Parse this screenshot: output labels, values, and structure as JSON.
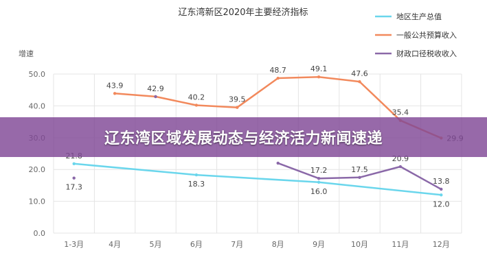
{
  "banner": {
    "headline": "辽东湾区域发展动态与经济活力新闻速递"
  },
  "colors": {
    "series1": "#6ad6ec",
    "series2": "#f2895c",
    "series3": "#8a68a8",
    "grid": "#e4e4e4",
    "axis_text": "#666666",
    "label_text": "#444444",
    "banner_bg": "#804896"
  },
  "chart_data": {
    "type": "line",
    "title": "辽东湾新区2020年主要经济指标",
    "xlabel": "",
    "ylabel": "增速",
    "ylim": [
      0,
      50
    ],
    "yticks": [
      "0.0",
      "10.0",
      "20.0",
      "30.0",
      "40.0",
      "50.0"
    ],
    "grid": true,
    "legend_position": "top-right",
    "categories": [
      "1-3月",
      "4月",
      "5月",
      "6月",
      "7月",
      "8月",
      "9月",
      "10月",
      "11月",
      "12月"
    ],
    "series": [
      {
        "name": "地区生产总值",
        "values": [
          21.8,
          null,
          null,
          18.3,
          null,
          null,
          16.0,
          null,
          null,
          12.0
        ],
        "connect_gaps": true
      },
      {
        "name": "一般公共预算收入",
        "values": [
          null,
          43.9,
          42.9,
          40.2,
          39.5,
          48.7,
          49.1,
          47.6,
          35.4,
          29.9
        ],
        "connect_gaps": false
      },
      {
        "name": "财政口径税收收入",
        "values": [
          17.3,
          null,
          42.9,
          null,
          null,
          22.0,
          17.2,
          17.5,
          20.9,
          13.8
        ],
        "connect_gaps": false
      }
    ],
    "data_labels": [
      {
        "series": 0,
        "index": 0,
        "text": "21.8",
        "pos": "above"
      },
      {
        "series": 0,
        "index": 3,
        "text": "18.3",
        "pos": "below"
      },
      {
        "series": 0,
        "index": 6,
        "text": "16.0",
        "pos": "below"
      },
      {
        "series": 0,
        "index": 9,
        "text": "12.0",
        "pos": "below"
      },
      {
        "series": 1,
        "index": 1,
        "text": "43.9",
        "pos": "above"
      },
      {
        "series": 1,
        "index": 2,
        "text": "42.9",
        "pos": "above"
      },
      {
        "series": 1,
        "index": 3,
        "text": "40.2",
        "pos": "above"
      },
      {
        "series": 1,
        "index": 4,
        "text": "39.5",
        "pos": "above"
      },
      {
        "series": 1,
        "index": 5,
        "text": "48.7",
        "pos": "above"
      },
      {
        "series": 1,
        "index": 6,
        "text": "49.1",
        "pos": "above"
      },
      {
        "series": 1,
        "index": 7,
        "text": "47.6",
        "pos": "above"
      },
      {
        "series": 1,
        "index": 8,
        "text": "35.4",
        "pos": "above"
      },
      {
        "series": 1,
        "index": 9,
        "text": "29.9",
        "pos": "right"
      },
      {
        "series": 2,
        "index": 0,
        "text": "17.3",
        "pos": "below"
      },
      {
        "series": 2,
        "index": 6,
        "text": "17.2",
        "pos": "above"
      },
      {
        "series": 2,
        "index": 7,
        "text": "17.5",
        "pos": "above"
      },
      {
        "series": 2,
        "index": 8,
        "text": "20.9",
        "pos": "above"
      },
      {
        "series": 2,
        "index": 9,
        "text": "13.8",
        "pos": "above"
      }
    ]
  }
}
